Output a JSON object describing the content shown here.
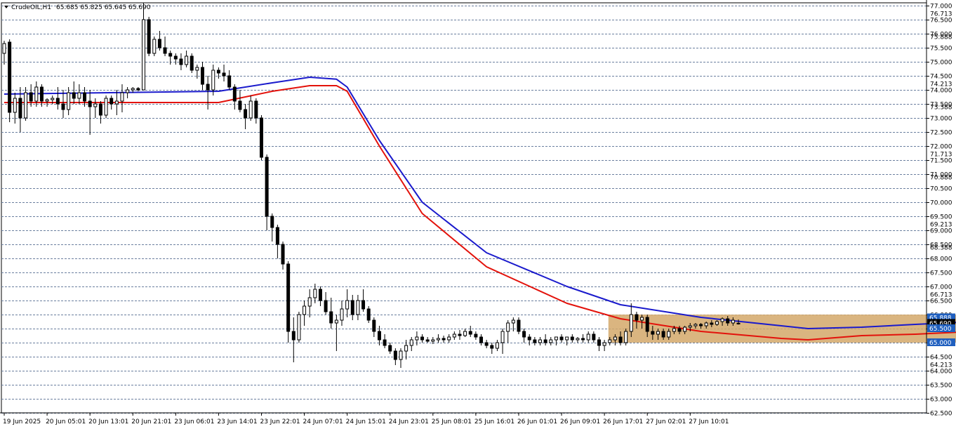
{
  "header": {
    "symbol": "CrudeOIL,H1",
    "ohlc": "65.685 65.825 65.645 65.690",
    "dropdown_icon": "triangle-down-icon"
  },
  "colors": {
    "background": "#ffffff",
    "grid": "#6b7f9f",
    "bull_candle": "#ffffff",
    "bear_candle": "#000000",
    "candle_outline": "#000000",
    "ma_fast": "#e3120b",
    "ma_slow": "#1a1acc",
    "range_box": "#d4a86a",
    "price_tag_blue": "#1f5fbf",
    "price_tag_text": "#ffffff"
  },
  "chart_data": {
    "type": "candlestick",
    "symbol": "CrudeOIL",
    "timeframe": "H1",
    "ylim": [
      62.5,
      77.1
    ],
    "y_ticks": [
      "77.000",
      "76.500",
      "76.000",
      "75.500",
      "75.000",
      "74.500",
      "74.000",
      "73.500",
      "73.000",
      "72.500",
      "72.000",
      "71.500",
      "71.000",
      "70.500",
      "70.000",
      "69.500",
      "69.000",
      "68.500",
      "68.000",
      "67.500",
      "67.000",
      "66.500",
      "66.000",
      "65.500",
      "65.000",
      "64.500",
      "64.000",
      "63.500",
      "63.000",
      "62.500"
    ],
    "y_extra_labels": [
      "76.713",
      "75.888",
      "74.213",
      "73.388",
      "71.713",
      "70.888",
      "69.213",
      "68.388",
      "66.713",
      "65.888",
      "64.213"
    ],
    "x_ticks": [
      "19 Jun 2025",
      "20 Jun 05:01",
      "20 Jun 13:01",
      "20 Jun 21:01",
      "23 Jun 06:01",
      "23 Jun 14:01",
      "23 Jun 22:01",
      "24 Jun 07:01",
      "24 Jun 15:01",
      "24 Jun 23:01",
      "25 Jun 08:01",
      "25 Jun 16:01",
      "26 Jun 01:01",
      "26 Jun 09:01",
      "26 Jun 17:01",
      "27 Jun 02:01",
      "27 Jun 10:01"
    ],
    "candles_per_tick": 8,
    "candles": [
      [
        75.3,
        75.75,
        74.9,
        75.65
      ],
      [
        75.7,
        75.8,
        72.85,
        73.2
      ],
      [
        73.2,
        73.9,
        72.8,
        73.7
      ],
      [
        73.7,
        74.1,
        72.5,
        73.0
      ],
      [
        73.0,
        74.1,
        72.9,
        73.9
      ],
      [
        73.9,
        74.2,
        73.4,
        73.6
      ],
      [
        73.6,
        74.3,
        73.4,
        74.1
      ],
      [
        74.1,
        74.2,
        73.4,
        73.6
      ],
      [
        73.6,
        73.7,
        73.4,
        73.65
      ],
      [
        73.65,
        73.8,
        73.5,
        73.7
      ],
      [
        73.7,
        74.1,
        73.3,
        73.5
      ],
      [
        73.5,
        74.0,
        73.0,
        73.3
      ],
      [
        73.3,
        74.1,
        73.1,
        73.9
      ],
      [
        73.9,
        74.3,
        73.5,
        73.7
      ],
      [
        73.7,
        74.2,
        73.5,
        73.9
      ],
      [
        73.9,
        74.1,
        73.4,
        73.6
      ],
      [
        73.6,
        74.0,
        72.4,
        73.4
      ],
      [
        73.4,
        73.7,
        73.0,
        73.5
      ],
      [
        73.5,
        73.6,
        72.8,
        73.1
      ],
      [
        73.1,
        73.8,
        73.0,
        73.7
      ],
      [
        73.7,
        73.8,
        73.3,
        73.5
      ],
      [
        73.5,
        74.0,
        73.1,
        73.6
      ],
      [
        73.6,
        74.2,
        73.2,
        73.9
      ],
      [
        73.9,
        74.1,
        73.7,
        74.0
      ],
      [
        74.0,
        74.1,
        73.9,
        74.05
      ],
      [
        74.05,
        74.1,
        73.95,
        74.0
      ],
      [
        74.0,
        77.1,
        74.0,
        76.5
      ],
      [
        76.5,
        76.6,
        75.2,
        75.3
      ],
      [
        75.3,
        75.9,
        75.2,
        75.8
      ],
      [
        75.8,
        76.1,
        75.4,
        75.5
      ],
      [
        75.5,
        75.9,
        75.2,
        75.3
      ],
      [
        75.3,
        75.4,
        74.9,
        75.2
      ],
      [
        75.2,
        75.3,
        74.9,
        75.1
      ],
      [
        75.1,
        75.3,
        74.7,
        74.9
      ],
      [
        74.9,
        75.4,
        74.8,
        75.2
      ],
      [
        75.2,
        75.3,
        74.6,
        74.7
      ],
      [
        74.7,
        74.9,
        74.4,
        74.8
      ],
      [
        74.8,
        75.0,
        74.0,
        74.2
      ],
      [
        74.2,
        74.5,
        73.3,
        74.0
      ],
      [
        74.0,
        74.9,
        73.8,
        74.7
      ],
      [
        74.7,
        74.8,
        74.4,
        74.6
      ],
      [
        74.6,
        74.9,
        74.3,
        74.5
      ],
      [
        74.5,
        74.7,
        74.0,
        74.1
      ],
      [
        74.1,
        74.2,
        73.3,
        73.6
      ],
      [
        73.6,
        74.0,
        73.2,
        73.3
      ],
      [
        73.3,
        73.5,
        72.6,
        73.0
      ],
      [
        73.0,
        73.8,
        72.9,
        73.6
      ],
      [
        73.6,
        73.7,
        72.8,
        73.0
      ],
      [
        73.0,
        73.1,
        71.5,
        71.6
      ],
      [
        71.6,
        71.7,
        69.0,
        69.5
      ],
      [
        69.5,
        69.6,
        68.6,
        69.1
      ],
      [
        69.1,
        69.2,
        68.0,
        68.5
      ],
      [
        68.5,
        68.6,
        67.6,
        67.8
      ],
      [
        67.8,
        67.9,
        65.0,
        65.4
      ],
      [
        65.4,
        65.9,
        64.3,
        65.1
      ],
      [
        65.1,
        66.1,
        65.0,
        66.0
      ],
      [
        66.0,
        66.5,
        65.6,
        66.3
      ],
      [
        66.3,
        66.9,
        65.9,
        66.6
      ],
      [
        66.6,
        67.1,
        66.4,
        66.9
      ],
      [
        66.9,
        67.0,
        66.3,
        66.5
      ],
      [
        66.5,
        66.8,
        66.0,
        66.1
      ],
      [
        66.1,
        66.6,
        65.5,
        65.7
      ],
      [
        65.7,
        66.0,
        64.7,
        65.8
      ],
      [
        65.8,
        66.5,
        65.6,
        66.2
      ],
      [
        66.2,
        66.9,
        65.9,
        66.5
      ],
      [
        66.5,
        66.7,
        65.8,
        66.0
      ],
      [
        66.0,
        66.7,
        65.8,
        66.5
      ],
      [
        66.5,
        66.9,
        66.1,
        66.2
      ],
      [
        66.2,
        66.3,
        65.7,
        65.8
      ],
      [
        65.8,
        65.9,
        65.2,
        65.4
      ],
      [
        65.4,
        65.6,
        64.9,
        65.1
      ],
      [
        65.1,
        65.3,
        64.8,
        64.9
      ],
      [
        64.9,
        65.0,
        64.6,
        64.7
      ],
      [
        64.7,
        64.8,
        64.2,
        64.4
      ],
      [
        64.4,
        64.8,
        64.1,
        64.7
      ],
      [
        64.7,
        65.1,
        64.4,
        64.9
      ],
      [
        64.9,
        65.2,
        64.7,
        65.1
      ],
      [
        65.1,
        65.4,
        64.9,
        65.2
      ],
      [
        65.2,
        65.3,
        65.0,
        65.1
      ],
      [
        65.1,
        65.2,
        65.0,
        65.05
      ],
      [
        65.05,
        65.2,
        64.95,
        65.1
      ],
      [
        65.1,
        65.3,
        65.0,
        65.15
      ],
      [
        65.15,
        65.25,
        65.0,
        65.1
      ],
      [
        65.1,
        65.3,
        65.0,
        65.2
      ],
      [
        65.2,
        65.4,
        65.1,
        65.3
      ],
      [
        65.3,
        65.45,
        65.1,
        65.25
      ],
      [
        65.25,
        65.5,
        65.2,
        65.4
      ],
      [
        65.4,
        65.6,
        65.2,
        65.3
      ],
      [
        65.3,
        65.4,
        65.1,
        65.2
      ],
      [
        65.2,
        65.3,
        64.9,
        65.0
      ],
      [
        65.0,
        65.1,
        64.8,
        64.9
      ],
      [
        64.9,
        65.0,
        64.6,
        64.8
      ],
      [
        64.8,
        65.1,
        64.7,
        65.0
      ],
      [
        65.0,
        65.5,
        64.6,
        65.4
      ],
      [
        65.4,
        65.8,
        65.0,
        65.7
      ],
      [
        65.7,
        65.9,
        65.4,
        65.8
      ],
      [
        65.8,
        65.9,
        65.3,
        65.4
      ],
      [
        65.4,
        65.5,
        65.0,
        65.2
      ],
      [
        65.2,
        65.3,
        64.9,
        65.1
      ],
      [
        65.1,
        65.2,
        64.9,
        65.0
      ],
      [
        65.0,
        65.2,
        64.9,
        65.1
      ],
      [
        65.1,
        65.3,
        64.9,
        65.0
      ],
      [
        65.0,
        65.2,
        64.9,
        65.1
      ],
      [
        65.1,
        65.2,
        64.9,
        65.2
      ],
      [
        65.2,
        65.3,
        65.0,
        65.1
      ],
      [
        65.1,
        65.2,
        64.9,
        65.2
      ],
      [
        65.2,
        65.3,
        65.0,
        65.1
      ],
      [
        65.1,
        65.2,
        65.0,
        65.15
      ],
      [
        65.15,
        65.3,
        65.0,
        65.1
      ],
      [
        65.1,
        65.4,
        65.0,
        65.3
      ],
      [
        65.3,
        65.4,
        65.0,
        65.1
      ],
      [
        65.1,
        65.2,
        64.7,
        64.9
      ],
      [
        64.9,
        65.1,
        64.7,
        65.0
      ],
      [
        65.0,
        65.2,
        64.9,
        65.1
      ],
      [
        65.1,
        65.3,
        64.9,
        65.2
      ],
      [
        65.2,
        65.4,
        64.9,
        65.0
      ],
      [
        65.0,
        65.5,
        64.9,
        65.4
      ],
      [
        65.4,
        66.4,
        65.2,
        66.0
      ],
      [
        66.0,
        66.1,
        65.5,
        65.8
      ],
      [
        65.8,
        66.0,
        65.5,
        65.9
      ],
      [
        65.9,
        66.0,
        65.2,
        65.4
      ],
      [
        65.4,
        65.6,
        65.1,
        65.3
      ],
      [
        65.3,
        65.5,
        65.1,
        65.4
      ],
      [
        65.4,
        65.5,
        65.1,
        65.2
      ],
      [
        65.2,
        65.5,
        65.1,
        65.4
      ],
      [
        65.4,
        65.6,
        65.3,
        65.5
      ],
      [
        65.5,
        65.6,
        65.3,
        65.4
      ],
      [
        65.4,
        65.6,
        65.3,
        65.55
      ],
      [
        65.55,
        65.7,
        65.4,
        65.6
      ],
      [
        65.6,
        65.7,
        65.5,
        65.65
      ],
      [
        65.65,
        65.7,
        65.5,
        65.6
      ],
      [
        65.6,
        65.75,
        65.5,
        65.7
      ],
      [
        65.7,
        65.8,
        65.55,
        65.65
      ],
      [
        65.65,
        65.8,
        65.6,
        65.75
      ],
      [
        65.75,
        65.9,
        65.6,
        65.85
      ],
      [
        65.85,
        65.95,
        65.6,
        65.7
      ],
      [
        65.7,
        65.9,
        65.6,
        65.8
      ],
      [
        65.685,
        65.825,
        65.645,
        65.69
      ]
    ],
    "series": [
      {
        "name": "",
        "color": "#1a1acc",
        "kind": "moving_average",
        "values": [
          [
            0,
            73.85
          ],
          [
            40,
            73.95
          ],
          [
            50,
            74.25
          ],
          [
            57,
            74.45
          ],
          [
            62,
            74.38
          ],
          [
            64,
            74.1
          ],
          [
            70,
            72.2
          ],
          [
            78,
            70.0
          ],
          [
            90,
            68.2
          ],
          [
            105,
            67.0
          ],
          [
            115,
            66.35
          ],
          [
            130,
            65.9
          ],
          [
            145,
            65.6
          ],
          [
            150,
            65.5
          ],
          [
            160,
            65.55
          ],
          [
            170,
            65.65
          ],
          [
            181,
            65.75
          ]
        ]
      },
      {
        "name": "",
        "color": "#e3120b",
        "kind": "moving_average",
        "values": [
          [
            0,
            73.55
          ],
          [
            40,
            73.55
          ],
          [
            50,
            73.95
          ],
          [
            57,
            74.15
          ],
          [
            62,
            74.15
          ],
          [
            64,
            73.95
          ],
          [
            70,
            72.0
          ],
          [
            78,
            69.6
          ],
          [
            90,
            67.7
          ],
          [
            105,
            66.4
          ],
          [
            115,
            65.85
          ],
          [
            130,
            65.4
          ],
          [
            145,
            65.15
          ],
          [
            150,
            65.1
          ],
          [
            160,
            65.25
          ],
          [
            170,
            65.3
          ],
          [
            181,
            65.4
          ]
        ]
      }
    ],
    "range_box": {
      "x_start": 113,
      "x_end": 181,
      "y_low": 65.0,
      "y_high": 66.0
    },
    "price_tags": [
      {
        "label": "65.888",
        "value": 65.888,
        "bg": "#1f5fbf"
      },
      {
        "label": "65.690",
        "value": 65.69,
        "bg": "#000000"
      },
      {
        "label": "65.500",
        "value": 65.5,
        "bg": "#1f5fbf"
      },
      {
        "label": "65.000",
        "value": 65.0,
        "bg": "#1f5fbf"
      }
    ],
    "grid": true
  }
}
